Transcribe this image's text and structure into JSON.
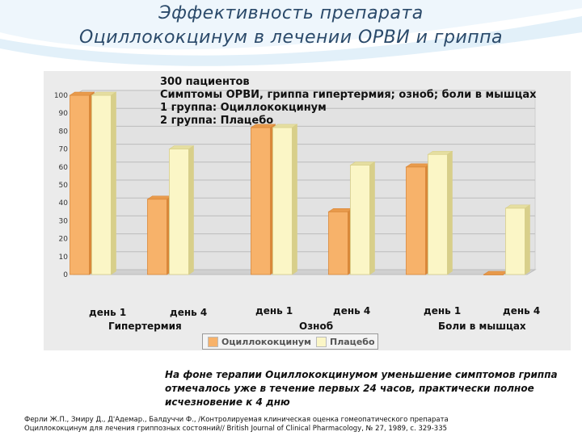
{
  "slide": {
    "title_line1": "Эффективность препарата",
    "title_line2": "Оциллококцинум в лечении ОРВИ и гриппа"
  },
  "info": {
    "line1": "300 пациентов",
    "line2": "Симптомы ОРВИ, гриппа гипертермия; озноб; боли в мышцах",
    "line3": "1 группа: Оциллококцинум",
    "line4": "2 группа: Плацебо"
  },
  "note": {
    "line1": "На фоне терапии Оциллококцинумом уменьшение симптомов гриппа",
    "line2": "отмечалось уже в течение первых 24 часов, практически полное",
    "line3": "исчезновение к 4 дню"
  },
  "reference": {
    "line1": "Ферли Ж.П., Змиру Д., Д'Адемар., Балдуччи Ф., /Контролируемая клиническая оценка гомеопатического препарата",
    "line2": "Оциллококцинум для лечения гриппозных состояний// British Journal of Clinical Pharmacology, № 27, 1989, с. 329-335"
  },
  "colors": {
    "series1": "#f7b26a",
    "series2": "#fbf6c6",
    "title": "#2b4a6a"
  },
  "chart_data": {
    "type": "bar",
    "categories": [
      "день 1",
      "день 4",
      "день 1",
      "день 4",
      "день 1",
      "день 4"
    ],
    "groups": [
      "Гипертермия",
      "Озноб",
      "Боли в мышцах"
    ],
    "series": [
      {
        "name": "Оциллококцинум",
        "values": [
          100,
          42,
          82,
          35,
          60,
          0
        ]
      },
      {
        "name": "Плацебо",
        "values": [
          100,
          70,
          82,
          61,
          67,
          37
        ]
      }
    ],
    "ylim": [
      0,
      100
    ],
    "yticks": [
      "0",
      "10",
      "20",
      "30",
      "40",
      "50",
      "60",
      "70",
      "80",
      "90",
      "100"
    ],
    "grid": true,
    "legend_position": "bottom"
  }
}
